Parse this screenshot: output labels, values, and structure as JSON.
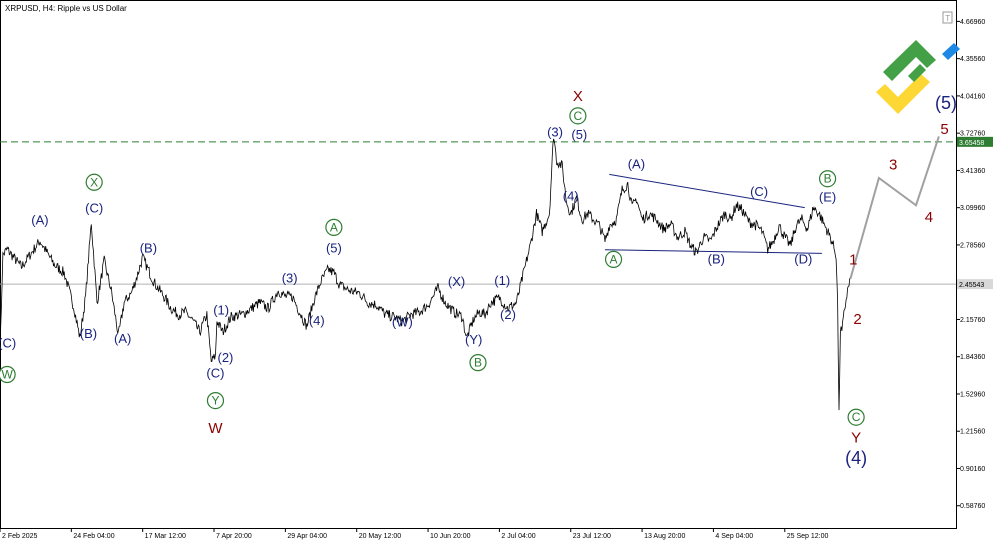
{
  "header": {
    "symbol": "XRPUSD, H4:  Ripple vs US Dollar"
  },
  "colors": {
    "price": "#000000",
    "navy": "#1a237e",
    "green": "#2e7d32",
    "darkred": "#8b0000",
    "projection": "#a0a0a0",
    "hline": "#2e7d32",
    "current_line": "#b0b0b0",
    "hline_label_bg": "#2e7d32",
    "current_label_bg": "#d8d8d8",
    "logo_green": "#43a047",
    "logo_yellow": "#fdd835",
    "logo_blue": "#1e88e5"
  },
  "chart_data": {
    "type": "line",
    "title": "XRPUSD, H4:  Ripple vs US Dollar",
    "ylim": [
      0.4,
      4.85
    ],
    "y_ticks": [
      "4.66960",
      "4.35560",
      "4.04160",
      "3.72760",
      "3.41360",
      "3.09960",
      "2.78560",
      "2.47160",
      "2.15760",
      "1.84360",
      "1.52960",
      "1.21560",
      "0.90160",
      "0.58760"
    ],
    "y_tick_values": [
      4.6696,
      4.3556,
      4.0416,
      3.7276,
      3.4136,
      3.0996,
      2.7856,
      2.4716,
      2.1576,
      1.8436,
      1.5296,
      1.2156,
      0.9016,
      0.5876
    ],
    "x_ticks": [
      "2 Feb 2025",
      "24 Feb 04:00",
      "17 Mar 12:00",
      "7 Apr 20:00",
      "29 Apr 04:00",
      "20 May 12:00",
      "10 Jun 20:00",
      "2 Jul 04:00",
      "23 Jul 12:00",
      "13 Aug 20:00",
      "4 Sep 04:00",
      "25 Sep 12:00"
    ],
    "x_tick_index": [
      0,
      50,
      100,
      150,
      200,
      250,
      300,
      350,
      400,
      450,
      500,
      550
    ],
    "price_keypoints": [
      [
        0,
        1.85
      ],
      [
        2,
        2.7
      ],
      [
        5,
        2.75
      ],
      [
        15,
        2.6
      ],
      [
        28,
        2.82
      ],
      [
        38,
        2.62
      ],
      [
        45,
        2.55
      ],
      [
        52,
        2.25
      ],
      [
        56,
        2.0
      ],
      [
        60,
        2.35
      ],
      [
        64,
        2.98
      ],
      [
        68,
        2.3
      ],
      [
        73,
        2.65
      ],
      [
        78,
        2.4
      ],
      [
        83,
        2.02
      ],
      [
        87,
        2.3
      ],
      [
        92,
        2.38
      ],
      [
        96,
        2.52
      ],
      [
        100,
        2.68
      ],
      [
        103,
        2.6
      ],
      [
        108,
        2.47
      ],
      [
        115,
        2.35
      ],
      [
        120,
        2.25
      ],
      [
        125,
        2.2
      ],
      [
        130,
        2.22
      ],
      [
        135,
        2.15
      ],
      [
        140,
        2.05
      ],
      [
        145,
        2.2
      ],
      [
        148,
        1.8
      ],
      [
        151,
        1.85
      ],
      [
        152,
        2.15
      ],
      [
        156,
        2.05
      ],
      [
        162,
        2.18
      ],
      [
        170,
        2.2
      ],
      [
        176,
        2.25
      ],
      [
        182,
        2.3
      ],
      [
        188,
        2.25
      ],
      [
        195,
        2.4
      ],
      [
        200,
        2.35
      ],
      [
        205,
        2.35
      ],
      [
        210,
        2.22
      ],
      [
        215,
        2.1
      ],
      [
        220,
        2.32
      ],
      [
        225,
        2.48
      ],
      [
        230,
        2.58
      ],
      [
        234,
        2.55
      ],
      [
        238,
        2.45
      ],
      [
        245,
        2.4
      ],
      [
        252,
        2.38
      ],
      [
        258,
        2.3
      ],
      [
        264,
        2.28
      ],
      [
        270,
        2.2
      ],
      [
        276,
        2.18
      ],
      [
        282,
        2.14
      ],
      [
        288,
        2.2
      ],
      [
        294,
        2.22
      ],
      [
        300,
        2.28
      ],
      [
        307,
        2.42
      ],
      [
        312,
        2.3
      ],
      [
        318,
        2.22
      ],
      [
        324,
        2.18
      ],
      [
        327,
        2.0
      ],
      [
        332,
        2.16
      ],
      [
        336,
        2.22
      ],
      [
        340,
        2.2
      ],
      [
        344,
        2.3
      ],
      [
        350,
        2.34
      ],
      [
        356,
        2.25
      ],
      [
        362,
        2.3
      ],
      [
        367,
        2.55
      ],
      [
        372,
        2.8
      ],
      [
        376,
        3.05
      ],
      [
        380,
        2.9
      ],
      [
        385,
        3.05
      ],
      [
        388,
        3.72
      ],
      [
        390,
        3.5
      ],
      [
        394,
        3.45
      ],
      [
        397,
        3.15
      ],
      [
        400,
        3.05
      ],
      [
        404,
        3.18
      ],
      [
        408,
        3.0
      ],
      [
        412,
        3.05
      ],
      [
        416,
        3.0
      ],
      [
        420,
        2.95
      ],
      [
        424,
        2.82
      ],
      [
        427,
        2.95
      ],
      [
        432,
        3.0
      ],
      [
        436,
        3.25
      ],
      [
        440,
        3.3
      ],
      [
        443,
        3.1
      ],
      [
        446,
        3.18
      ],
      [
        450,
        3.0
      ],
      [
        455,
        3.05
      ],
      [
        460,
        3.0
      ],
      [
        465,
        2.92
      ],
      [
        470,
        2.96
      ],
      [
        475,
        2.85
      ],
      [
        480,
        2.9
      ],
      [
        484,
        2.78
      ],
      [
        488,
        2.72
      ],
      [
        493,
        2.85
      ],
      [
        498,
        2.82
      ],
      [
        503,
        2.95
      ],
      [
        508,
        3.05
      ],
      [
        512,
        3.0
      ],
      [
        516,
        3.12
      ],
      [
        520,
        3.08
      ],
      [
        525,
        2.98
      ],
      [
        530,
        2.95
      ],
      [
        534,
        2.9
      ],
      [
        538,
        2.75
      ],
      [
        542,
        2.82
      ],
      [
        546,
        2.95
      ],
      [
        550,
        2.85
      ],
      [
        554,
        2.78
      ],
      [
        558,
        2.95
      ],
      [
        562,
        3.0
      ],
      [
        566,
        2.92
      ],
      [
        570,
        3.1
      ],
      [
        574,
        3.05
      ],
      [
        578,
        2.95
      ],
      [
        582,
        2.85
      ],
      [
        584,
        2.78
      ],
      [
        586,
        2.7
      ],
      [
        587,
        2.3
      ],
      [
        588,
        1.35
      ],
      [
        589,
        2.08
      ],
      [
        590,
        2.05
      ],
      [
        592,
        2.25
      ],
      [
        594,
        2.4
      ],
      [
        596,
        2.5
      ]
    ],
    "series_x_max": 600,
    "hlines": [
      {
        "value": 3.65458,
        "label": "3.65458",
        "style": "dashed"
      },
      {
        "value": 2.45543,
        "label": "2.45543",
        "style": "solid"
      }
    ],
    "triangle_lines": [
      {
        "from": [
          427,
          3.38
        ],
        "to": [
          564,
          3.1
        ]
      },
      {
        "from": [
          424,
          2.745
        ],
        "to": [
          576,
          2.715
        ]
      }
    ],
    "projection": [
      [
        596,
        2.5
      ],
      [
        616,
        3.35
      ],
      [
        642,
        3.12
      ],
      [
        658,
        3.7
      ]
    ],
    "wave_labels": [
      {
        "text": "(C)",
        "x": 5,
        "y": 1.92,
        "color": "navy",
        "size": 13
      },
      {
        "text": "W",
        "x": 5,
        "y": 1.66,
        "color": "green",
        "circled": true,
        "size": 12
      },
      {
        "text": "(A)",
        "x": 28,
        "y": 2.96,
        "color": "navy",
        "size": 13
      },
      {
        "text": "X",
        "x": 66,
        "y": 3.28,
        "color": "green",
        "circled": true,
        "size": 12
      },
      {
        "text": "(C)",
        "x": 66,
        "y": 3.06,
        "color": "navy",
        "size": 13
      },
      {
        "text": "(B)",
        "x": 62,
        "y": 2.0,
        "color": "navy",
        "size": 13
      },
      {
        "text": "(A)",
        "x": 86,
        "y": 1.96,
        "color": "navy",
        "size": 13
      },
      {
        "text": "(B)",
        "x": 104,
        "y": 2.72,
        "color": "navy",
        "size": 13
      },
      {
        "text": "(1)",
        "x": 155,
        "y": 2.2,
        "color": "navy",
        "size": 13
      },
      {
        "text": "(2)",
        "x": 158,
        "y": 1.8,
        "color": "navy",
        "size": 13
      },
      {
        "text": "(C)",
        "x": 151,
        "y": 1.67,
        "color": "navy",
        "size": 13
      },
      {
        "text": "Y",
        "x": 151,
        "y": 1.44,
        "color": "green",
        "circled": true,
        "size": 12
      },
      {
        "text": "W",
        "x": 151,
        "y": 1.2,
        "color": "darkred",
        "size": 15
      },
      {
        "text": "(3)",
        "x": 203,
        "y": 2.47,
        "color": "navy",
        "size": 13
      },
      {
        "text": "(4)",
        "x": 222,
        "y": 2.11,
        "color": "navy",
        "size": 13
      },
      {
        "text": "A",
        "x": 234,
        "y": 2.9,
        "color": "green",
        "circled": true,
        "size": 12
      },
      {
        "text": "(5)",
        "x": 234,
        "y": 2.72,
        "color": "navy",
        "size": 13
      },
      {
        "text": "(W)",
        "x": 282,
        "y": 2.1,
        "color": "navy",
        "size": 13
      },
      {
        "text": "(X)",
        "x": 320,
        "y": 2.44,
        "color": "navy",
        "size": 13
      },
      {
        "text": "(Y)",
        "x": 332,
        "y": 1.95,
        "color": "navy",
        "size": 13
      },
      {
        "text": "B",
        "x": 335,
        "y": 1.76,
        "color": "green",
        "circled": true,
        "size": 12
      },
      {
        "text": "(1)",
        "x": 352,
        "y": 2.45,
        "color": "navy",
        "size": 13
      },
      {
        "text": "(2)",
        "x": 356,
        "y": 2.16,
        "color": "navy",
        "size": 13
      },
      {
        "text": "X",
        "x": 405,
        "y": 4.0,
        "color": "darkred",
        "size": 15
      },
      {
        "text": "C",
        "x": 405,
        "y": 3.84,
        "color": "green",
        "circled": true,
        "size": 12
      },
      {
        "text": "(3)",
        "x": 389,
        "y": 3.7,
        "color": "navy",
        "size": 13
      },
      {
        "text": "(5)",
        "x": 406,
        "y": 3.68,
        "color": "navy",
        "size": 13
      },
      {
        "text": "(4)",
        "x": 400,
        "y": 3.16,
        "color": "navy",
        "size": 13
      },
      {
        "text": "(A)",
        "x": 446,
        "y": 3.43,
        "color": "navy",
        "size": 13
      },
      {
        "text": "A",
        "x": 430,
        "y": 2.63,
        "color": "green",
        "circled": true,
        "size": 12
      },
      {
        "text": "(B)",
        "x": 502,
        "y": 2.63,
        "color": "navy",
        "size": 13
      },
      {
        "text": "(C)",
        "x": 532,
        "y": 3.2,
        "color": "navy",
        "size": 13
      },
      {
        "text": "B",
        "x": 580,
        "y": 3.31,
        "color": "green",
        "circled": true,
        "size": 12
      },
      {
        "text": "(E)",
        "x": 580,
        "y": 3.15,
        "color": "navy",
        "size": 13
      },
      {
        "text": "(D)",
        "x": 563,
        "y": 2.63,
        "color": "navy",
        "size": 13
      },
      {
        "text": "1",
        "x": 598,
        "y": 2.62,
        "color": "darkred",
        "size": 15
      },
      {
        "text": "2",
        "x": 601,
        "y": 2.12,
        "color": "darkred",
        "size": 15
      },
      {
        "text": "C",
        "x": 600,
        "y": 1.3,
        "color": "green",
        "circled": true,
        "size": 12
      },
      {
        "text": "Y",
        "x": 600,
        "y": 1.12,
        "color": "darkred",
        "size": 15
      },
      {
        "text": "(4)",
        "x": 600,
        "y": 0.94,
        "color": "navy",
        "size": 18
      },
      {
        "text": "3",
        "x": 626,
        "y": 3.42,
        "color": "darkred",
        "size": 15
      },
      {
        "text": "4",
        "x": 651,
        "y": 2.98,
        "color": "darkred",
        "size": 15
      },
      {
        "text": "(5)",
        "x": 663,
        "y": 3.93,
        "color": "navy",
        "size": 18
      },
      {
        "text": "5",
        "x": 662,
        "y": 3.72,
        "color": "darkred",
        "size": 15
      }
    ]
  }
}
